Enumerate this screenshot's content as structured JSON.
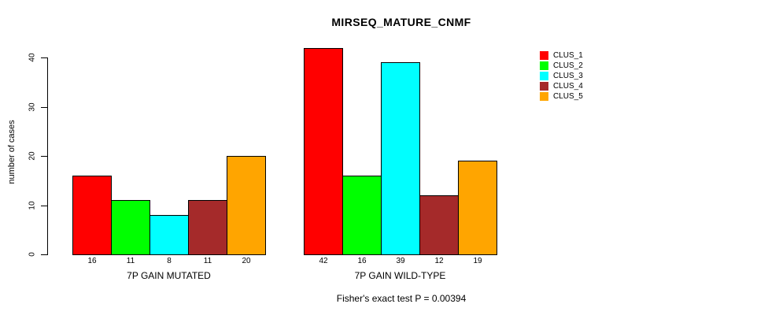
{
  "chart_data": {
    "type": "bar",
    "title": "MIRSEQ_MATURE_CNMF",
    "ylabel": "number of cases",
    "xlabel": "",
    "ylim": [
      0,
      40
    ],
    "yticks": [
      0,
      10,
      20,
      30,
      40
    ],
    "grid": false,
    "legend_position": "right",
    "bar_border_color": "#000000",
    "series_names": [
      "CLUS_1",
      "CLUS_2",
      "CLUS_3",
      "CLUS_4",
      "CLUS_5"
    ],
    "colors": [
      "#FF0000",
      "#00FF00",
      "#00FFFF",
      "#A52A2A",
      "#FFA500"
    ],
    "groups": [
      {
        "label": "7P GAIN MUTATED",
        "values": [
          16,
          11,
          8,
          11,
          20
        ]
      },
      {
        "label": "7P GAIN WILD-TYPE",
        "values": [
          42,
          16,
          39,
          12,
          19
        ]
      }
    ],
    "bar_value_labels": [
      [
        16,
        11,
        8,
        11,
        20
      ],
      [
        42,
        16,
        39,
        12,
        19
      ]
    ],
    "annotation": "Fisher's exact test P = 0.00394"
  },
  "legend": {
    "items": [
      {
        "label": "CLUS_1",
        "color": "#FF0000"
      },
      {
        "label": "CLUS_2",
        "color": "#00FF00"
      },
      {
        "label": "CLUS_3",
        "color": "#00FFFF"
      },
      {
        "label": "CLUS_4",
        "color": "#A52A2A"
      },
      {
        "label": "CLUS_5",
        "color": "#FFA500"
      }
    ]
  }
}
